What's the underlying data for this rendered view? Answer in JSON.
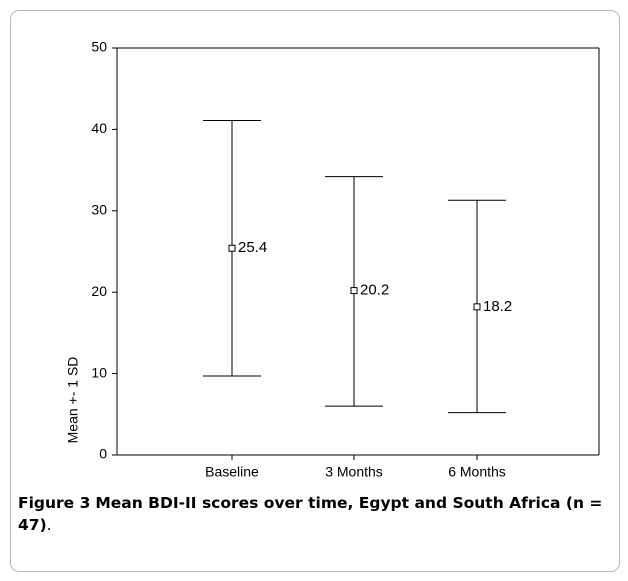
{
  "chart_data": {
    "type": "errorbar",
    "categories": [
      "Baseline",
      "3 Months",
      "6 Months"
    ],
    "series": [
      {
        "mean": [
          25.4,
          20.2,
          18.2
        ],
        "upper": [
          41.1,
          34.2,
          31.3
        ],
        "lower": [
          9.7,
          6.0,
          5.2
        ],
        "mean_labels": [
          "25.4",
          "20.2",
          "18.2"
        ]
      }
    ],
    "ylabel": "Mean +- 1 SD",
    "xlabel": "",
    "ylim": [
      0,
      50
    ],
    "yticks": [
      0,
      10,
      20,
      30,
      40,
      50
    ],
    "grid": false,
    "legend": "none"
  },
  "caption": {
    "label": "Figure 3",
    "text": "Mean BDI-II scores over time, Egypt and South Africa (n = 47)",
    "suffix": "."
  },
  "colors": {
    "line": "#000000",
    "frame_border": "#b9b9b9",
    "background": "#ffffff"
  }
}
